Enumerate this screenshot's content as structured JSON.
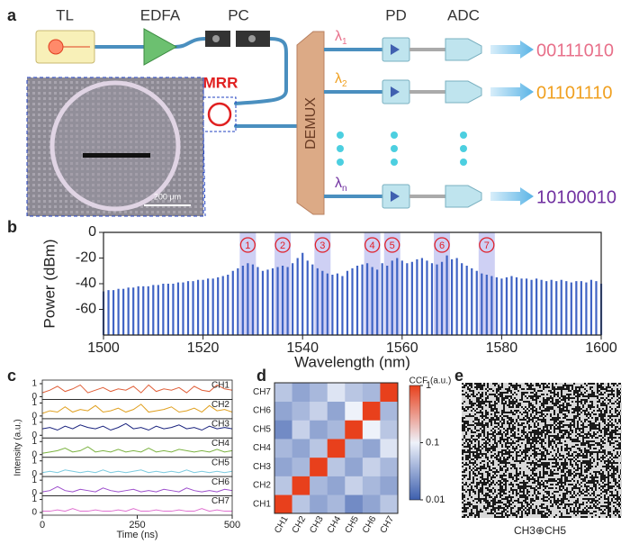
{
  "panel_a": {
    "label": "a",
    "components": {
      "tl": "TL",
      "edfa": "EDFA",
      "pc": "PC",
      "pd": "PD",
      "adc": "ADC",
      "mrr": "MRR",
      "demux": "DEMUX"
    },
    "scale_bar": "200 μm",
    "channels": [
      {
        "lambda": "λ",
        "sub": "1",
        "bits": "00111010",
        "color": "#e8708a"
      },
      {
        "lambda": "λ",
        "sub": "2",
        "bits": "01101110",
        "color": "#f0a020"
      },
      {
        "lambda": "λ",
        "sub": "n",
        "bits": "10100010",
        "color": "#7030a0"
      }
    ]
  },
  "chart_data": [
    {
      "type": "comb",
      "panel_label": "b",
      "xlabel": "Wavelength (nm)",
      "ylabel": "Power (dBm)",
      "color": "#3f63c4",
      "x": [
        1500,
        1501,
        1502,
        1503,
        1504,
        1505,
        1506,
        1507,
        1508,
        1509,
        1510,
        1511,
        1512,
        1513,
        1514,
        1515,
        1516,
        1517,
        1518,
        1519,
        1520,
        1521,
        1522,
        1523,
        1524,
        1525,
        1526,
        1527,
        1528,
        1529,
        1530,
        1531,
        1532,
        1533,
        1534,
        1535,
        1536,
        1537,
        1538,
        1539,
        1540,
        1541,
        1542,
        1543,
        1544,
        1545,
        1546,
        1547,
        1548,
        1549,
        1550,
        1551,
        1552,
        1553,
        1554,
        1555,
        1556,
        1557,
        1558,
        1559,
        1560,
        1561,
        1562,
        1563,
        1564,
        1565,
        1566,
        1567,
        1568,
        1569,
        1570,
        1571,
        1572,
        1573,
        1574,
        1575,
        1576,
        1577,
        1578,
        1579,
        1580,
        1581,
        1582,
        1583,
        1584,
        1585,
        1586,
        1587,
        1588,
        1589,
        1590,
        1591,
        1592,
        1593,
        1594,
        1595,
        1596,
        1597,
        1598,
        1599,
        1600
      ],
      "values": [
        -46,
        -45,
        -45,
        -44,
        -44,
        -43,
        -43,
        -42,
        -42,
        -42,
        -41,
        -41,
        -40,
        -40,
        -40,
        -39,
        -39,
        -38,
        -38,
        -37,
        -37,
        -36,
        -36,
        -35,
        -34,
        -33,
        -30,
        -28,
        -26,
        -24,
        -25,
        -27,
        -30,
        -29,
        -28,
        -27,
        -26,
        -27,
        -24,
        -20,
        -16,
        -22,
        -25,
        -28,
        -30,
        -32,
        -33,
        -32,
        -34,
        -30,
        -28,
        -26,
        -25,
        -24,
        -27,
        -29,
        -24,
        -26,
        -22,
        -20,
        -22,
        -24,
        -23,
        -21,
        -20,
        -22,
        -24,
        -25,
        -23,
        -18,
        -21,
        -20,
        -24,
        -26,
        -28,
        -30,
        -32,
        -33,
        -34,
        -35,
        -36,
        -35,
        -34,
        -35,
        -36,
        -36,
        -37,
        -36,
        -37,
        -38,
        -37,
        -38,
        -37,
        -38,
        -39,
        -38,
        -38,
        -39,
        -37,
        -38,
        -40
      ],
      "xlim": [
        1500,
        1600
      ],
      "xticks": [
        1500,
        1520,
        1540,
        1560,
        1580,
        1600
      ],
      "ylim": [
        -80,
        0
      ],
      "yticks": [
        0,
        -20,
        -40,
        -60
      ],
      "channels": {
        "labels": [
          "1",
          "2",
          "3",
          "4",
          "5",
          "6",
          "7"
        ],
        "x": [
          1529,
          1536,
          1544,
          1554,
          1558,
          1568,
          1577
        ]
      },
      "band_color": "#b9bcf0",
      "marker_color": "#e0202a"
    },
    {
      "type": "line",
      "panel_label": "c",
      "xlabel": "Time (ns)",
      "ylabel": "Intensity (a.u.)",
      "stacked_panels": true,
      "x": [
        0,
        20,
        40,
        60,
        80,
        100,
        120,
        140,
        160,
        180,
        200,
        220,
        240,
        260,
        280,
        300,
        320,
        340,
        360,
        380,
        400,
        420,
        440,
        460,
        480,
        500
      ],
      "xlim": [
        0,
        500
      ],
      "xticks": [
        0,
        250,
        500
      ],
      "ylim": [
        0,
        1
      ],
      "yticks": [
        0,
        1
      ],
      "series": [
        {
          "name": "CH1",
          "color": "#e0603a",
          "values": [
            0.3,
            0.5,
            0.8,
            0.4,
            0.6,
            0.9,
            0.3,
            0.5,
            0.7,
            0.4,
            0.6,
            0.5,
            0.8,
            0.3,
            0.9,
            0.4,
            0.6,
            0.5,
            0.7,
            0.3,
            0.8,
            0.5,
            0.4,
            0.9,
            0.6,
            0.5
          ]
        },
        {
          "name": "CH2",
          "color": "#e0a020",
          "values": [
            0.2,
            0.4,
            0.3,
            0.7,
            0.3,
            0.5,
            0.4,
            0.8,
            0.3,
            0.4,
            0.6,
            0.3,
            0.5,
            0.9,
            0.3,
            0.4,
            0.5,
            0.7,
            0.3,
            0.4,
            0.6,
            0.3,
            0.8,
            0.4,
            0.5,
            0.3
          ]
        },
        {
          "name": "CH3",
          "color": "#1a237e",
          "values": [
            0.5,
            0.6,
            0.4,
            0.7,
            0.5,
            0.8,
            0.6,
            0.5,
            0.7,
            0.4,
            0.6,
            0.9,
            0.5,
            0.6,
            0.4,
            0.7,
            0.5,
            0.6,
            0.8,
            0.5,
            0.6,
            0.4,
            0.7,
            0.5,
            0.6,
            0.5
          ]
        },
        {
          "name": "CH4",
          "color": "#7cb342",
          "values": [
            0.1,
            0.2,
            0.3,
            0.5,
            0.2,
            0.3,
            0.6,
            0.2,
            0.3,
            0.2,
            0.4,
            0.2,
            0.3,
            0.2,
            0.5,
            0.2,
            0.3,
            0.2,
            0.4,
            0.3,
            0.2,
            0.3,
            0.2,
            0.4,
            0.2,
            0.3
          ]
        },
        {
          "name": "CH5",
          "color": "#7ccbe0",
          "values": [
            0.1,
            0.2,
            0.1,
            0.3,
            0.2,
            0.1,
            0.2,
            0.1,
            0.3,
            0.1,
            0.2,
            0.1,
            0.2,
            0.3,
            0.1,
            0.2,
            0.1,
            0.2,
            0.1,
            0.3,
            0.1,
            0.2,
            0.1,
            0.2,
            0.1,
            0.2
          ]
        },
        {
          "name": "CH6",
          "color": "#9c4dcc",
          "values": [
            0.1,
            0.2,
            0.5,
            0.2,
            0.1,
            0.3,
            0.2,
            0.1,
            0.4,
            0.2,
            0.1,
            0.2,
            0.3,
            0.1,
            0.2,
            0.1,
            0.3,
            0.2,
            0.1,
            0.4,
            0.2,
            0.1,
            0.2,
            0.1,
            0.3,
            0.2
          ]
        },
        {
          "name": "CH7",
          "color": "#e070d0",
          "values": [
            0.1,
            0.1,
            0.2,
            0.1,
            0.3,
            0.1,
            0.1,
            0.2,
            0.1,
            0.1,
            0.2,
            0.1,
            0.3,
            0.1,
            0.1,
            0.2,
            0.1,
            0.1,
            0.2,
            0.1,
            0.1,
            0.3,
            0.1,
            0.2,
            0.1,
            0.1
          ]
        }
      ]
    },
    {
      "type": "heatmap",
      "panel_label": "d",
      "categories": [
        "CH1",
        "CH2",
        "CH3",
        "CH4",
        "CH5",
        "CH6",
        "CH7"
      ],
      "values": [
        [
          1,
          0.05,
          0.03,
          0.04,
          0.02,
          0.03,
          0.05
        ],
        [
          0.05,
          1,
          0.04,
          0.03,
          0.06,
          0.04,
          0.03
        ],
        [
          0.03,
          0.04,
          1,
          0.05,
          0.03,
          0.06,
          0.04
        ],
        [
          0.04,
          0.03,
          0.05,
          1,
          0.04,
          0.03,
          0.08
        ],
        [
          0.02,
          0.06,
          0.03,
          0.04,
          1,
          0.1,
          0.05
        ],
        [
          0.03,
          0.04,
          0.06,
          0.03,
          0.1,
          1,
          0.04
        ],
        [
          0.05,
          0.03,
          0.04,
          0.08,
          0.05,
          0.04,
          1
        ]
      ],
      "colorbar": {
        "label": "CCF (a.u.)",
        "lim": [
          0.01,
          1
        ],
        "ticks": [
          1,
          0.1,
          0.01
        ],
        "log": true,
        "colors": [
          "#3d5fae",
          "#eef2fa",
          "#e8401c"
        ]
      }
    }
  ],
  "panel_e": {
    "label": "e",
    "caption": "CH3⊕CH5"
  }
}
